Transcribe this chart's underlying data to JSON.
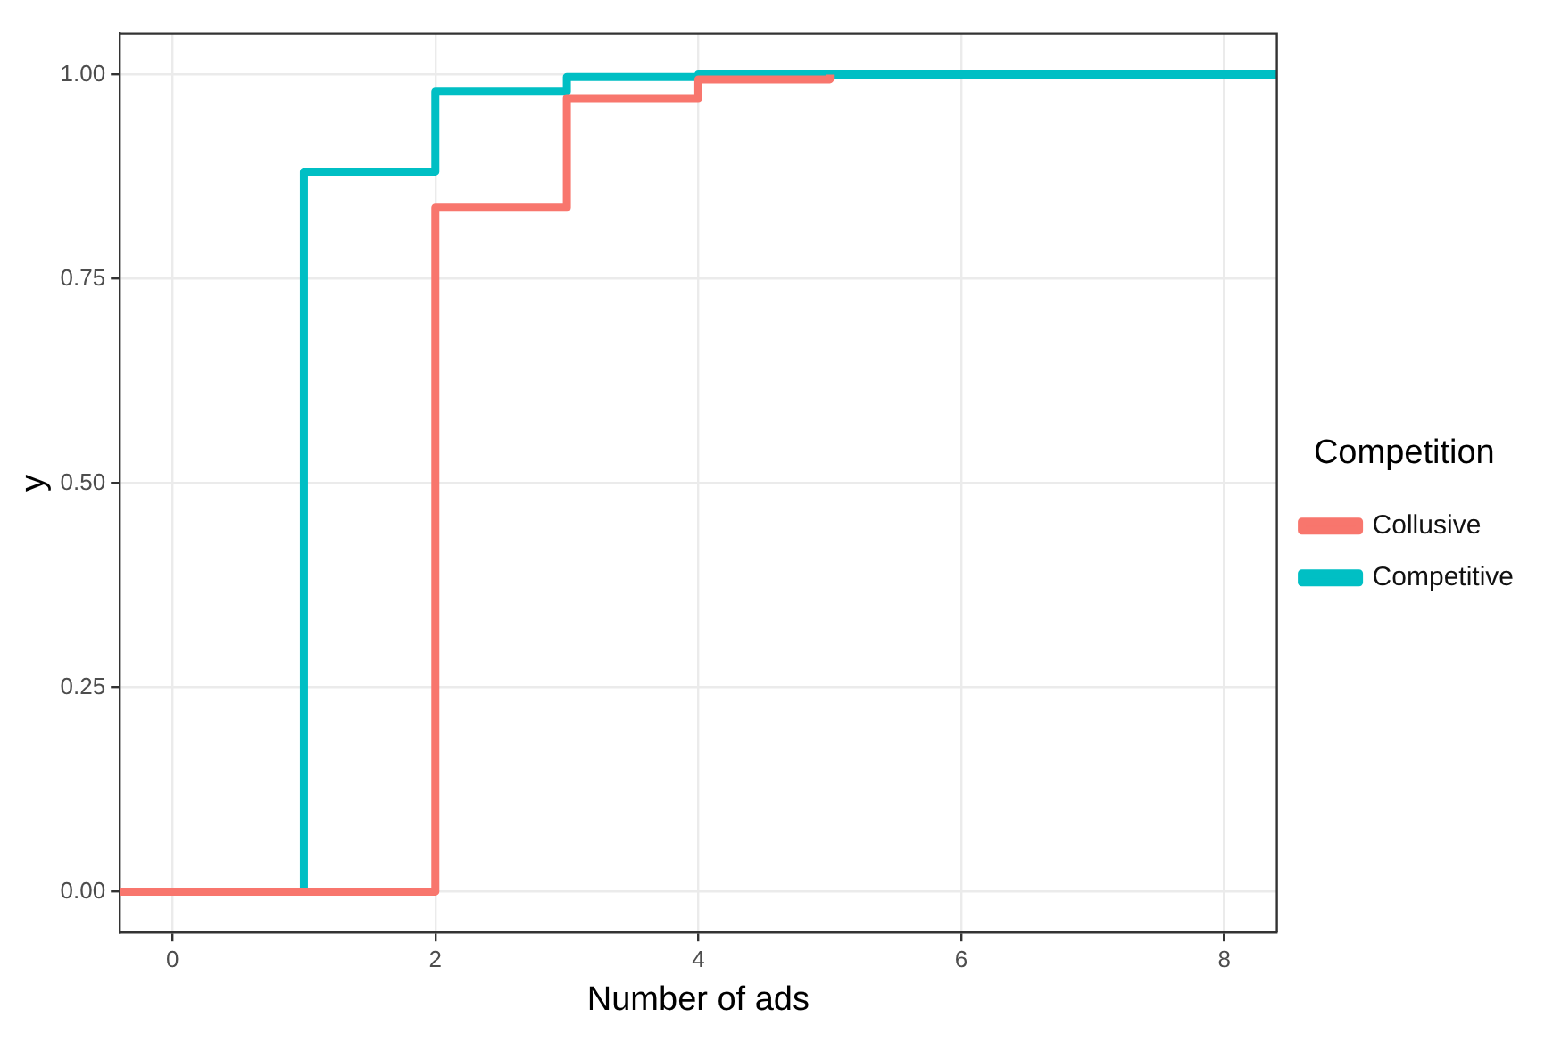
{
  "chart_data": {
    "type": "step",
    "xlabel": "Number of ads",
    "ylabel": "y",
    "legend_title": "Competition",
    "legend": "right",
    "grid": true,
    "line_style": "solid",
    "marker": "none",
    "xlim": [
      -0.4,
      8.4
    ],
    "xticks": [
      0,
      2,
      4,
      6,
      8
    ],
    "ylim": [
      -0.05,
      1.05
    ],
    "yticks": [
      {
        "value": 0,
        "label": "0.00"
      },
      {
        "value": 0.25,
        "label": "0.25"
      },
      {
        "value": 0.5,
        "label": "0.50"
      },
      {
        "value": 0.75,
        "label": "0.75"
      },
      {
        "value": 1,
        "label": "1.00"
      }
    ],
    "series": [
      {
        "name": "Collusive",
        "color": "#f8766d",
        "x": [
          -0.4,
          2,
          3,
          4,
          5
        ],
        "values": [
          0,
          0.837,
          0.971,
          0.994,
          1
        ]
      },
      {
        "name": "Competitive",
        "color": "#00bfc4",
        "x": [
          -0.4,
          1,
          2,
          3,
          4,
          8.4
        ],
        "values": [
          0,
          0.881,
          0.979,
          0.997,
          1,
          1
        ]
      }
    ]
  }
}
